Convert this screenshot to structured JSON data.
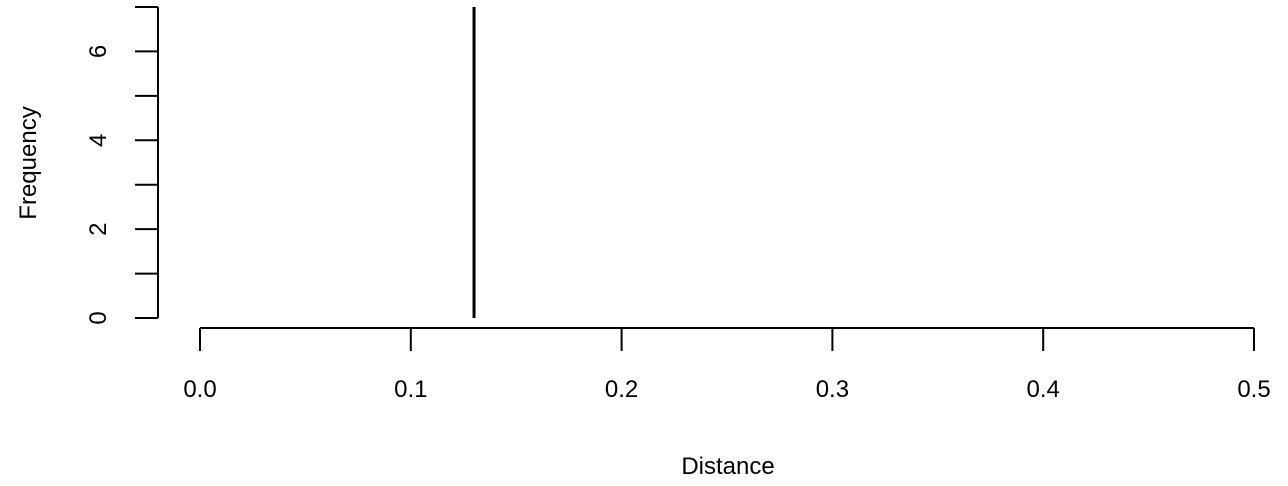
{
  "chart_data": {
    "type": "histogram",
    "title": "",
    "xlabel": "Distance",
    "ylabel": "Frequency",
    "xlim": [
      0,
      0.5
    ],
    "ylim": [
      0,
      7
    ],
    "x_ticks": [
      "0.0",
      "0.1",
      "0.2",
      "0.3",
      "0.4",
      "0.5"
    ],
    "y_ticks": [
      "0",
      "2",
      "4",
      "6"
    ],
    "bars": [
      {
        "x": 0.13,
        "count": 7
      }
    ],
    "grid": false,
    "bar_color": "#000000"
  }
}
